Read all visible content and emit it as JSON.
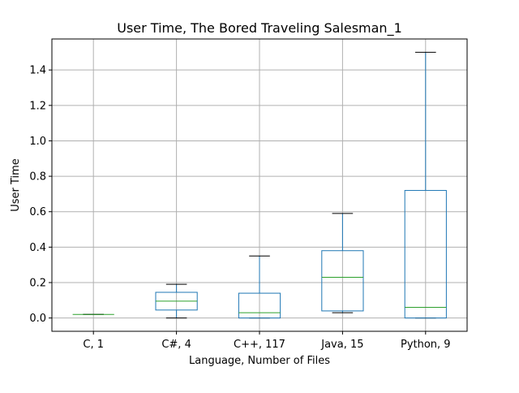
{
  "chart_data": {
    "type": "box",
    "title": "User Time, The Bored Traveling Salesman_1",
    "xlabel": "Language, Number of Files",
    "ylabel": "User Time",
    "ylim": [
      -0.075,
      1.575
    ],
    "yticks": [
      0.0,
      0.2,
      0.4,
      0.6,
      0.8,
      1.0,
      1.2,
      1.4
    ],
    "ytick_labels": [
      "0.0",
      "0.2",
      "0.4",
      "0.6",
      "0.8",
      "1.0",
      "1.2",
      "1.4"
    ],
    "grid": true,
    "box_color": "#1f77b4",
    "median_color": "#2ca02c",
    "whisker_cap_color": "#000000",
    "categories": [
      "C, 1",
      "C#, 4",
      "C++, 117",
      "Java, 15",
      "Python, 9"
    ],
    "boxes": [
      {
        "label": "C, 1",
        "whislo": 0.02,
        "q1": 0.02,
        "med": 0.02,
        "q3": 0.02,
        "whishi": 0.02
      },
      {
        "label": "C#, 4",
        "whislo": 0.0,
        "q1": 0.045,
        "med": 0.095,
        "q3": 0.145,
        "whishi": 0.19
      },
      {
        "label": "C++, 117",
        "whislo": 0.0,
        "q1": 0.0,
        "med": 0.03,
        "q3": 0.14,
        "whishi": 0.35
      },
      {
        "label": "Java, 15",
        "whislo": 0.03,
        "q1": 0.04,
        "med": 0.23,
        "q3": 0.38,
        "whishi": 0.59
      },
      {
        "label": "Python, 9",
        "whislo": 0.0,
        "q1": 0.0,
        "med": 0.06,
        "q3": 0.72,
        "whishi": 1.5
      }
    ]
  }
}
